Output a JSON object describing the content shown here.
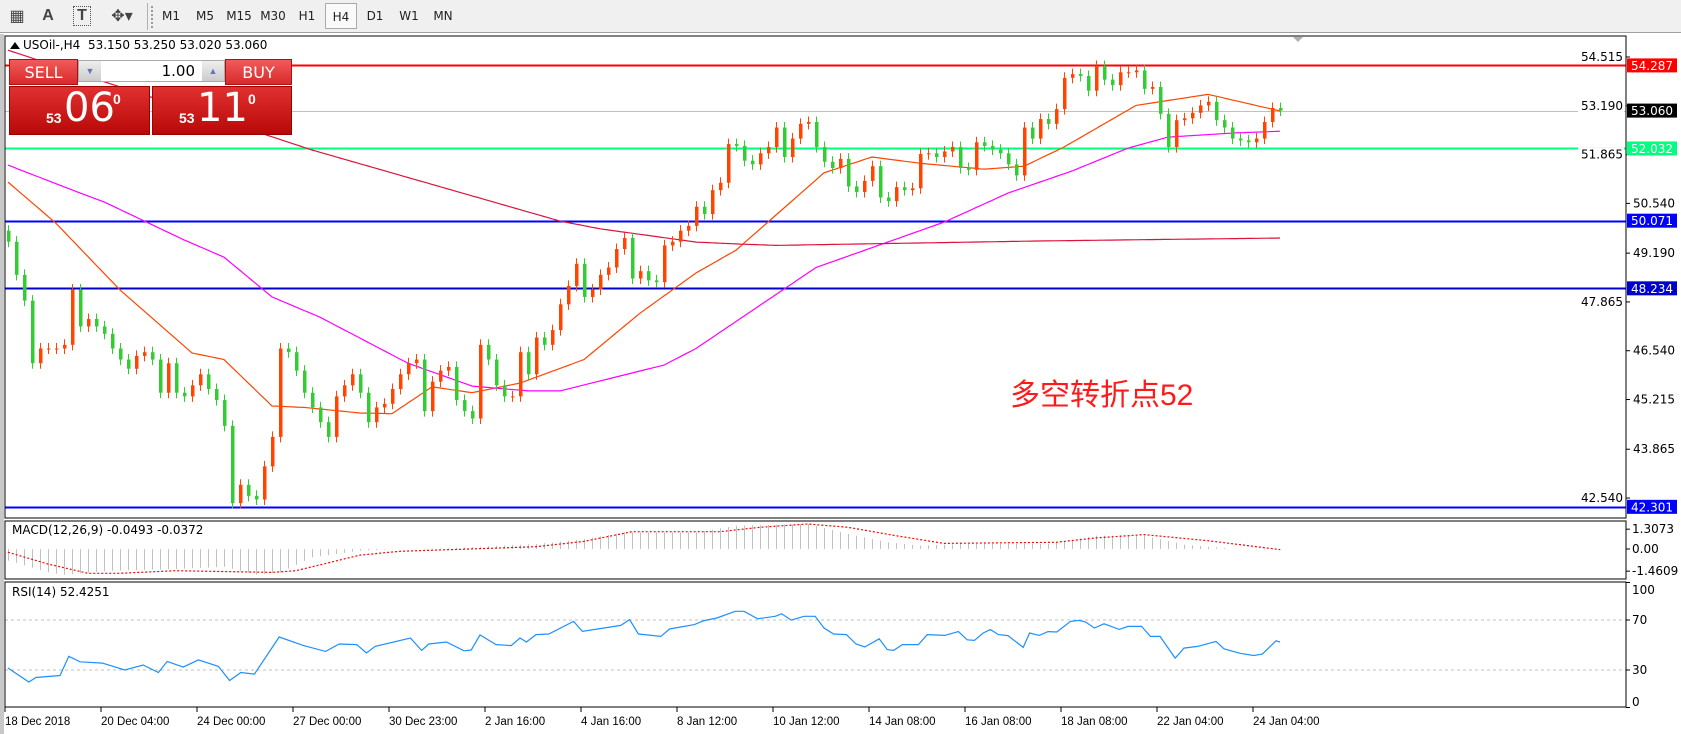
{
  "toolbar": {
    "tools": [
      {
        "icon": "grid-f-icon",
        "glyph": "▦"
      },
      {
        "icon": "text-a-icon",
        "glyph": "A"
      },
      {
        "icon": "text-label-icon",
        "glyph": "T"
      },
      {
        "icon": "arrows-dropdown-icon",
        "glyph": "✥▾"
      }
    ],
    "timeframes": [
      "M1",
      "M5",
      "M15",
      "M30",
      "H1",
      "H4",
      "D1",
      "W1",
      "MN"
    ],
    "active_timeframe": "H4"
  },
  "chart": {
    "symbol": "USOil-,H4",
    "ohlc_text": "53.150 53.250 53.020 53.060"
  },
  "trade_panel": {
    "sell_label": "SELL",
    "buy_label": "BUY",
    "lot": "1.00",
    "sell": {
      "prefix": "53",
      "main": "06",
      "sup": "0"
    },
    "buy": {
      "prefix": "53",
      "main": "11",
      "sup": "0"
    }
  },
  "annotation": "多空转折点52",
  "colors": {
    "bull": "#ff4500",
    "bear": "#32cd32",
    "ma_fast": "#ff4500",
    "ma_mid": "#ff00ff",
    "ma_slow": "#dc143c",
    "rsi": "#1e90ff",
    "macd_hist": "#c0c0c0",
    "macd_signal": "#ff0000"
  },
  "chart_data": [
    {
      "type": "candlestick",
      "symbol": "USOil-",
      "timeframe": "H4",
      "ylim": [
        42.0,
        54.95
      ],
      "price_ticks": [
        54.515,
        53.19,
        51.865,
        50.54,
        49.19,
        47.865,
        46.54,
        45.215,
        43.865,
        42.54
      ],
      "time_labels": [
        {
          "index": 0,
          "label": "18 Dec 2018"
        },
        {
          "index": 12,
          "label": "20 Dec 04:00"
        },
        {
          "index": 24,
          "label": "24 Dec 00:00"
        },
        {
          "index": 36,
          "label": "27 Dec 00:00"
        },
        {
          "index": 48,
          "label": "30 Dec 23:00"
        },
        {
          "index": 60,
          "label": "2 Jan 16:00"
        },
        {
          "index": 72,
          "label": "4 Jan 16:00"
        },
        {
          "index": 84,
          "label": "8 Jan 12:00"
        },
        {
          "index": 96,
          "label": "10 Jan 12:00"
        },
        {
          "index": 108,
          "label": "14 Jan 08:00"
        },
        {
          "index": 120,
          "label": "16 Jan 08:00"
        },
        {
          "index": 132,
          "label": "18 Jan 08:00"
        },
        {
          "index": 144,
          "label": "22 Jan 04:00"
        },
        {
          "index": 156,
          "label": "24 Jan 04:00"
        }
      ],
      "closes": [
        49.5,
        48.6,
        47.9,
        46.2,
        46.6,
        46.6,
        46.6,
        46.7,
        48.2,
        47.2,
        47.4,
        47.2,
        47.0,
        46.6,
        46.3,
        46.05,
        46.4,
        46.5,
        46.3,
        45.4,
        46.2,
        45.4,
        45.3,
        45.6,
        45.9,
        45.5,
        45.2,
        44.5,
        42.4,
        42.9,
        42.6,
        42.5,
        43.4,
        44.2,
        46.6,
        46.5,
        46.0,
        45.4,
        45.0,
        44.6,
        44.2,
        45.3,
        45.6,
        45.9,
        45.4,
        44.6,
        45.0,
        45.1,
        45.5,
        45.9,
        46.2,
        46.3,
        44.9,
        45.7,
        46.0,
        46.1,
        45.2,
        44.9,
        44.7,
        46.7,
        46.3,
        45.6,
        45.3,
        45.3,
        46.5,
        45.9,
        46.9,
        46.7,
        47.1,
        47.8,
        48.3,
        48.9,
        48.0,
        48.2,
        48.6,
        48.8,
        49.3,
        49.6,
        48.5,
        48.7,
        48.45,
        48.4,
        49.4,
        49.5,
        49.8,
        49.93,
        50.45,
        50.25,
        50.9,
        51.1,
        52.15,
        52.1,
        51.7,
        51.6,
        51.9,
        52.07,
        52.6,
        51.8,
        52.3,
        52.7,
        52.75,
        52.07,
        51.67,
        51.5,
        51.75,
        51.0,
        50.85,
        51.15,
        51.55,
        50.7,
        50.6,
        50.98,
        50.9,
        50.95,
        51.88,
        51.9,
        51.8,
        51.95,
        52.07,
        51.5,
        51.45,
        52.2,
        52.1,
        52.0,
        51.9,
        51.6,
        51.3,
        52.6,
        52.3,
        52.83,
        52.7,
        53.1,
        53.95,
        54.05,
        54.0,
        53.6,
        54.27,
        53.9,
        53.75,
        54.1,
        54.1,
        54.15,
        53.65,
        53.7,
        52.97,
        52.07,
        52.8,
        52.85,
        53.0,
        53.2,
        53.3,
        52.8,
        52.6,
        52.3,
        52.25,
        52.2,
        52.3,
        52.75,
        53.13,
        53.06
      ],
      "horizontal_lines": [
        {
          "value": 54.287,
          "label": "54.287",
          "color": "#ff0000",
          "text_color": "#ffffff"
        },
        {
          "value": 53.06,
          "label": "53.060",
          "color": "#000000",
          "line_color": "#c0c0c0",
          "text_color": "#ffffff"
        },
        {
          "value": 52.032,
          "label": "52.032",
          "color": "#00ff7f",
          "text_color": "#ffffff"
        },
        {
          "value": 50.071,
          "label": "50.071",
          "color": "#0000ff",
          "text_color": "#ffffff"
        },
        {
          "value": 48.234,
          "label": "48.234",
          "color": "#0000cd",
          "text_color": "#ffffff"
        },
        {
          "value": 42.301,
          "label": "42.301",
          "color": "#0000ff",
          "text_color": "#ffffff"
        }
      ],
      "moving_averages": [
        {
          "key": "ma_fast",
          "points": [
            [
              0,
              51.12
            ],
            [
              6,
              50.0
            ],
            [
              14,
              48.19
            ],
            [
              23,
              46.48
            ],
            [
              27,
              46.3
            ],
            [
              33,
              45.04
            ],
            [
              37,
              45.0
            ],
            [
              44,
              44.85
            ],
            [
              48,
              44.83
            ],
            [
              53,
              45.56
            ],
            [
              58,
              45.4
            ],
            [
              64,
              45.66
            ],
            [
              72,
              46.3
            ],
            [
              79,
              47.56
            ],
            [
              86,
              48.65
            ],
            [
              91,
              49.27
            ],
            [
              102,
              51.37
            ],
            [
              108,
              51.8
            ],
            [
              114,
              51.63
            ],
            [
              122,
              51.47
            ],
            [
              127,
              51.55
            ],
            [
              132,
              52.07
            ],
            [
              141,
              53.2
            ],
            [
              150,
              53.5
            ],
            [
              153,
              53.35
            ],
            [
              159,
              53.05
            ]
          ]
        },
        {
          "key": "ma_mid",
          "points": [
            [
              0,
              51.58
            ],
            [
              7,
              50.99
            ],
            [
              12,
              50.58
            ],
            [
              22,
              49.55
            ],
            [
              27,
              49.08
            ],
            [
              33,
              48.0
            ],
            [
              39,
              47.45
            ],
            [
              50,
              46.2
            ],
            [
              58,
              45.58
            ],
            [
              65,
              45.45
            ],
            [
              69,
              45.45
            ],
            [
              82,
              46.15
            ],
            [
              86,
              46.6
            ],
            [
              101,
              48.8
            ],
            [
              117,
              50.03
            ],
            [
              125,
              50.82
            ],
            [
              133,
              51.42
            ],
            [
              140,
              52.04
            ],
            [
              145,
              52.34
            ],
            [
              153,
              52.45
            ],
            [
              159,
              52.5
            ]
          ]
        },
        {
          "key": "ma_slow",
          "points": [
            [
              0,
              54.7
            ],
            [
              32,
              52.42
            ],
            [
              38,
              51.99
            ],
            [
              69,
              50.06
            ],
            [
              74,
              49.85
            ],
            [
              86,
              49.49
            ],
            [
              91,
              49.44
            ],
            [
              96,
              49.4
            ],
            [
              129,
              49.52
            ],
            [
              159,
              49.6
            ]
          ]
        }
      ]
    },
    {
      "type": "histogram+line",
      "title": "MACD(12,26,9) -0.0493 -0.0372",
      "ticks": [
        "1.3073",
        "0.00",
        "-1.4609"
      ],
      "tick_values": [
        1.3073,
        0,
        -1.4609
      ],
      "histogram": [
        [
          0,
          -0.77
        ],
        [
          5,
          -1.54
        ],
        [
          7,
          -1.7
        ],
        [
          13,
          -1.43
        ],
        [
          21,
          -1.32
        ],
        [
          27,
          -1.17
        ],
        [
          31,
          -1.7
        ],
        [
          34,
          -1.54
        ],
        [
          38,
          -0.55
        ],
        [
          44,
          -0.11
        ],
        [
          49,
          0.0
        ],
        [
          55,
          0.05
        ],
        [
          66,
          0.33
        ],
        [
          72,
          0.66
        ],
        [
          77,
          1.1
        ],
        [
          86,
          1.1
        ],
        [
          91,
          1.54
        ],
        [
          100,
          1.65
        ],
        [
          105,
          0.99
        ],
        [
          110,
          0.44
        ],
        [
          114,
          0.22
        ],
        [
          119,
          0.33
        ],
        [
          130,
          0.33
        ],
        [
          136,
          0.88
        ],
        [
          142,
          0.88
        ],
        [
          147,
          0.29
        ],
        [
          153,
          0.0
        ],
        [
          159,
          -0.05
        ]
      ],
      "signal": [
        [
          0,
          -0.22
        ],
        [
          5,
          -0.99
        ],
        [
          10,
          -1.6
        ],
        [
          14,
          -1.6
        ],
        [
          21,
          -1.43
        ],
        [
          33,
          -1.54
        ],
        [
          36,
          -1.43
        ],
        [
          44,
          -0.4
        ],
        [
          49,
          -0.15
        ],
        [
          60,
          0.04
        ],
        [
          66,
          0.15
        ],
        [
          72,
          0.5
        ],
        [
          78,
          1.14
        ],
        [
          89,
          1.14
        ],
        [
          94,
          1.43
        ],
        [
          100,
          1.65
        ],
        [
          105,
          1.43
        ],
        [
          111,
          0.88
        ],
        [
          117,
          0.37
        ],
        [
          131,
          0.44
        ],
        [
          136,
          0.73
        ],
        [
          142,
          0.95
        ],
        [
          150,
          0.55
        ],
        [
          159,
          -0.04
        ]
      ]
    },
    {
      "type": "line",
      "title": "RSI(14) 52.4251",
      "ylim": [
        0,
        100
      ],
      "ticks": [
        "100",
        "70",
        "30",
        "0"
      ],
      "tick_values": [
        100,
        70,
        30,
        0
      ],
      "levels": [
        70,
        30
      ],
      "points": [
        [
          0,
          31.6
        ],
        [
          2.6,
          20.4
        ],
        [
          3.5,
          24
        ],
        [
          6.5,
          25.6
        ],
        [
          7.6,
          41
        ],
        [
          9,
          36.6
        ],
        [
          11.8,
          35.5
        ],
        [
          14.6,
          30
        ],
        [
          16.9,
          34
        ],
        [
          18.8,
          28
        ],
        [
          19.9,
          36.9
        ],
        [
          21.9,
          32.3
        ],
        [
          23.8,
          38.1
        ],
        [
          26.3,
          32.9
        ],
        [
          27.7,
          21.6
        ],
        [
          29.1,
          28
        ],
        [
          30.8,
          26.7
        ],
        [
          33.9,
          56.4
        ],
        [
          36.9,
          49.7
        ],
        [
          39.7,
          44.9
        ],
        [
          41.4,
          50.8
        ],
        [
          43.6,
          50.3
        ],
        [
          44.8,
          43.6
        ],
        [
          45.9,
          48.9
        ],
        [
          50.3,
          55.6
        ],
        [
          51.7,
          45.7
        ],
        [
          52.6,
          50.8
        ],
        [
          54.8,
          52.4
        ],
        [
          57,
          45.4
        ],
        [
          57.9,
          46
        ],
        [
          59,
          58.1
        ],
        [
          61,
          50.3
        ],
        [
          62.9,
          49.5
        ],
        [
          64,
          55.6
        ],
        [
          64.8,
          52.4
        ],
        [
          66,
          58.3
        ],
        [
          67.6,
          58.8
        ],
        [
          70.7,
          68.9
        ],
        [
          71.8,
          60.9
        ],
        [
          76.6,
          65.7
        ],
        [
          77.7,
          70.3
        ],
        [
          78.8,
          58.8
        ],
        [
          81.6,
          56.9
        ],
        [
          82.7,
          62.8
        ],
        [
          85.8,
          66.3
        ],
        [
          87,
          69.5
        ],
        [
          88.6,
          71.6
        ],
        [
          90.9,
          77
        ],
        [
          92,
          77
        ],
        [
          93.7,
          71
        ],
        [
          95.9,
          73
        ],
        [
          96.7,
          75
        ],
        [
          97.9,
          69.9
        ],
        [
          99.5,
          73
        ],
        [
          100.9,
          73
        ],
        [
          102,
          63.6
        ],
        [
          103.2,
          58.8
        ],
        [
          104.8,
          58.3
        ],
        [
          106,
          50.8
        ],
        [
          107.1,
          48.4
        ],
        [
          108.9,
          55
        ],
        [
          109.9,
          46.3
        ],
        [
          110.7,
          45.7
        ],
        [
          111.8,
          50.3
        ],
        [
          113.8,
          50.3
        ],
        [
          114.9,
          58.3
        ],
        [
          117.1,
          57.7
        ],
        [
          118.8,
          60.7
        ],
        [
          119.9,
          54.2
        ],
        [
          120.8,
          53.7
        ],
        [
          121.9,
          59.6
        ],
        [
          122.8,
          62.3
        ],
        [
          123.8,
          58.3
        ],
        [
          125,
          57.5
        ],
        [
          126.9,
          48.1
        ],
        [
          127.7,
          59.6
        ],
        [
          128.9,
          57.7
        ],
        [
          130,
          60.7
        ],
        [
          131.1,
          60.4
        ],
        [
          132.8,
          68.9
        ],
        [
          133.9,
          69.7
        ],
        [
          134.7,
          68.4
        ],
        [
          135.8,
          63.6
        ],
        [
          137,
          67
        ],
        [
          138.9,
          62.5
        ],
        [
          140,
          64.9
        ],
        [
          141.7,
          64.9
        ],
        [
          142.8,
          56.9
        ],
        [
          144,
          56.9
        ],
        [
          145.9,
          39.5
        ],
        [
          147,
          47.5
        ],
        [
          148.7,
          48.9
        ],
        [
          151,
          52.9
        ],
        [
          152,
          47
        ],
        [
          154,
          43.4
        ],
        [
          155.7,
          41.6
        ],
        [
          156.8,
          42.7
        ],
        [
          158.5,
          53.4
        ],
        [
          159,
          52.4
        ]
      ]
    }
  ]
}
